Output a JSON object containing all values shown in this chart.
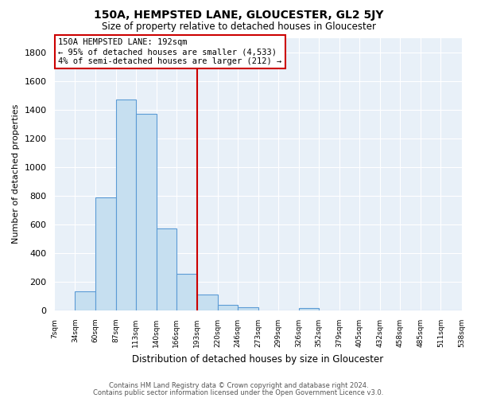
{
  "title": "150A, HEMPSTED LANE, GLOUCESTER, GL2 5JY",
  "subtitle": "Size of property relative to detached houses in Gloucester",
  "xlabel": "Distribution of detached houses by size in Gloucester",
  "ylabel": "Number of detached properties",
  "bar_color": "#c6dff0",
  "bar_edge_color": "#5b9bd5",
  "background_color": "#ffffff",
  "plot_bg_color": "#e8f0f8",
  "grid_color": "#ffffff",
  "marker_line_color": "#cc0000",
  "bin_edges": [
    7,
    34,
    60,
    87,
    113,
    140,
    166,
    193,
    220,
    246,
    273,
    299,
    326,
    352,
    379,
    405,
    432,
    458,
    485,
    511,
    538
  ],
  "bin_labels": [
    "7sqm",
    "34sqm",
    "60sqm",
    "87sqm",
    "113sqm",
    "140sqm",
    "166sqm",
    "193sqm",
    "220sqm",
    "246sqm",
    "273sqm",
    "299sqm",
    "326sqm",
    "352sqm",
    "379sqm",
    "405sqm",
    "432sqm",
    "458sqm",
    "485sqm",
    "511sqm",
    "538sqm"
  ],
  "bar_heights": [
    0,
    135,
    790,
    1470,
    1370,
    570,
    255,
    110,
    40,
    25,
    0,
    0,
    15,
    0,
    0,
    0,
    0,
    0,
    0,
    0
  ],
  "ylim": [
    0,
    1900
  ],
  "yticks": [
    0,
    200,
    400,
    600,
    800,
    1000,
    1200,
    1400,
    1600,
    1800
  ],
  "annotation_title": "150A HEMPSTED LANE: 192sqm",
  "annotation_line1": "← 95% of detached houses are smaller (4,533)",
  "annotation_line2": "4% of semi-detached houses are larger (212) →",
  "annotation_box_color": "#ffffff",
  "annotation_box_edge": "#cc0000",
  "footer1": "Contains HM Land Registry data © Crown copyright and database right 2024.",
  "footer2": "Contains public sector information licensed under the Open Government Licence v3.0."
}
